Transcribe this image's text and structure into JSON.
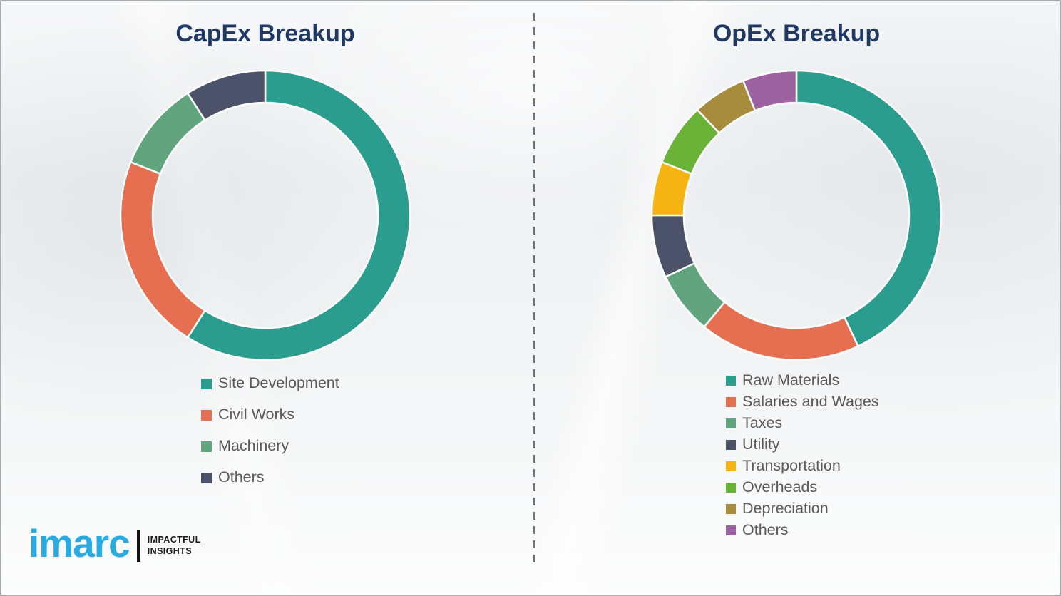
{
  "titles": {
    "left": "CapEx Breakup",
    "right": "OpEx Breakup"
  },
  "title_color": "#1f3864",
  "divider_style": "vertical dashed gray line between panels",
  "chart_data": [
    {
      "type": "pie",
      "subtype": "donut",
      "title": "CapEx Breakup",
      "start_angle": 0,
      "direction": "clockwise",
      "value_format": "percent_of_total_estimated",
      "categories": [
        "Site Development",
        "Civil Works",
        "Machinery",
        "Others"
      ],
      "values": [
        59,
        22,
        10,
        9
      ],
      "colors": [
        "#2b9d8f",
        "#e76f51",
        "#61a47e",
        "#4b5269"
      ],
      "legend_position": "below-left"
    },
    {
      "type": "pie",
      "subtype": "donut",
      "title": "OpEx Breakup",
      "start_angle": 0,
      "direction": "clockwise",
      "value_format": "percent_of_total_estimated",
      "categories": [
        "Raw Materials",
        "Salaries and Wages",
        "Taxes",
        "Utility",
        "Transportation",
        "Overheads",
        "Depreciation",
        "Others"
      ],
      "values": [
        43,
        18,
        7,
        7,
        6,
        7,
        6,
        6
      ],
      "colors": [
        "#2b9d8f",
        "#e76f51",
        "#61a47e",
        "#4b5269",
        "#f6b412",
        "#6bb338",
        "#a78c3e",
        "#9c63a0"
      ],
      "legend_position": "below-left"
    }
  ],
  "logo": {
    "brand": "imarc",
    "brand_color": "#29abe2",
    "tagline_top": "IMPACTFUL",
    "tagline_bottom": "INSIGHTS"
  }
}
